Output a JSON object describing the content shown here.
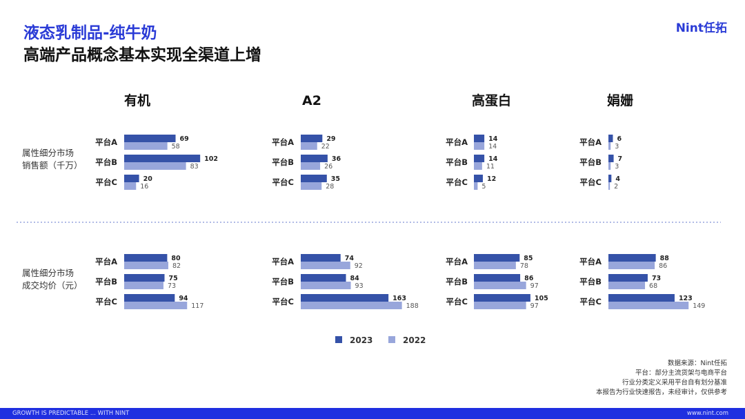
{
  "header": {
    "title": "液态乳制品-纯牛奶",
    "subtitle": "高端产品概念基本实现全渠道上增",
    "logo": "Nint任拓"
  },
  "colors": {
    "y2023": "#3552a8",
    "y2022": "#98a6db",
    "accent": "#2a3bd6"
  },
  "chart_data": {
    "type": "bar",
    "orientation": "horizontal",
    "categories": [
      "平台A",
      "平台B",
      "平台C"
    ],
    "groups": [
      "有机",
      "A2",
      "高蛋白",
      "娟姗"
    ],
    "legend": [
      "2023",
      "2022"
    ],
    "rows": [
      {
        "label_line1": "属性细分市场",
        "label_line2": "销售额（千万）",
        "panels": [
          {
            "group": "有机",
            "values_2023": [
              69,
              102,
              20
            ],
            "values_2022": [
              58,
              83,
              16
            ]
          },
          {
            "group": "A2",
            "values_2023": [
              29,
              36,
              35
            ],
            "values_2022": [
              22,
              26,
              28
            ]
          },
          {
            "group": "高蛋白",
            "values_2023": [
              14,
              14,
              12
            ],
            "values_2022": [
              14,
              11,
              5
            ]
          },
          {
            "group": "娟姗",
            "values_2023": [
              6,
              7,
              4
            ],
            "values_2022": [
              3,
              3,
              2
            ]
          }
        ]
      },
      {
        "label_line1": "属性细分市场",
        "label_line2": "成交均价（元）",
        "panels": [
          {
            "group": "有机",
            "values_2023": [
              80,
              75,
              94
            ],
            "values_2022": [
              82,
              73,
              117
            ]
          },
          {
            "group": "A2",
            "values_2023": [
              74,
              84,
              163
            ],
            "values_2022": [
              92,
              93,
              188
            ]
          },
          {
            "group": "高蛋白",
            "values_2023": [
              85,
              86,
              105
            ],
            "values_2022": [
              78,
              97,
              97
            ]
          },
          {
            "group": "娟姗",
            "values_2023": [
              88,
              73,
              123
            ],
            "values_2022": [
              86,
              68,
              149
            ]
          }
        ]
      }
    ]
  },
  "notes": [
    "数据来源：Nint任拓",
    "平台：部分主流货架与电商平台",
    "行业分类定义采用平台自有划分基准",
    "本报告为行业快速报告，未经审计，仅供参考"
  ],
  "footer": {
    "left": "GROWTH IS PREDICTABLE ... WITH NINT",
    "right": "www.nint.com"
  }
}
